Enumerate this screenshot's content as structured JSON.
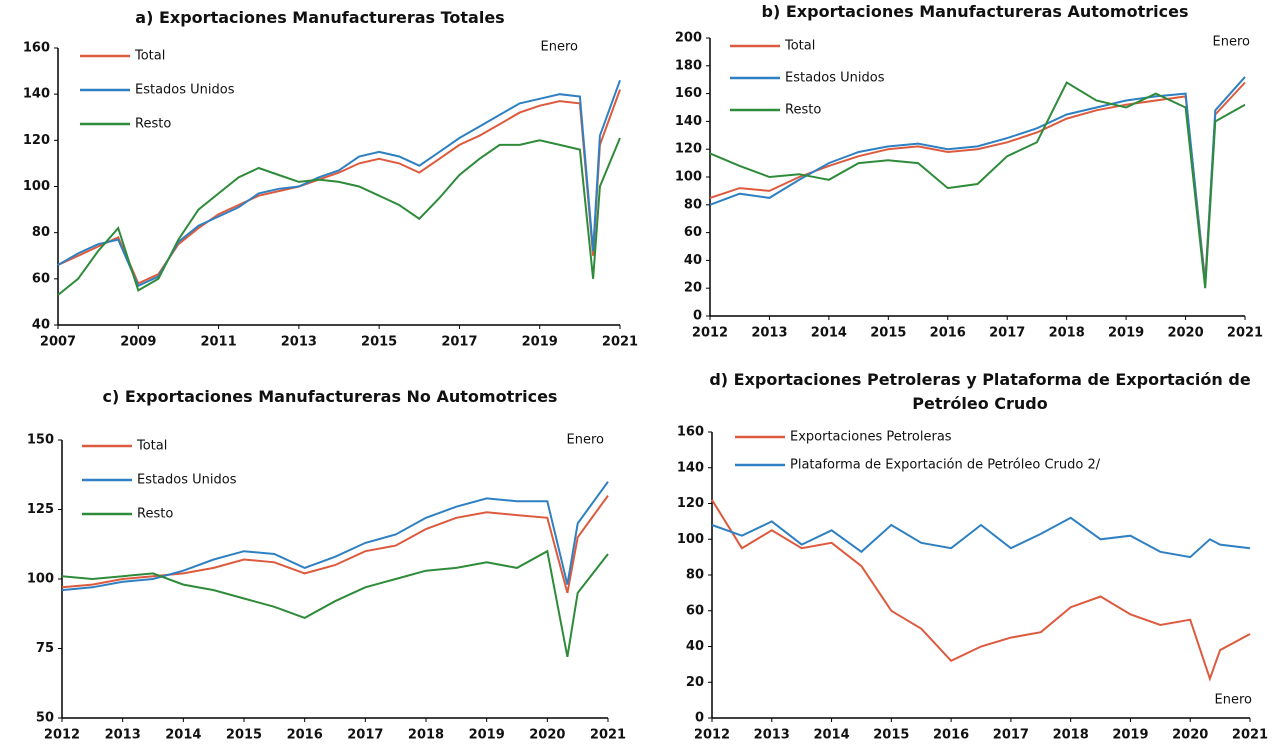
{
  "chart_data": [
    {
      "type": "line",
      "title": "a) Exportaciones Manufactureras Totales",
      "annotation": "Enero",
      "x": [
        2007,
        2007.5,
        2008,
        2008.5,
        2009,
        2009.5,
        2010,
        2010.5,
        2011,
        2011.5,
        2012,
        2012.5,
        2013,
        2013.5,
        2014,
        2014.5,
        2015,
        2015.5,
        2016,
        2016.5,
        2017,
        2017.5,
        2018,
        2018.5,
        2019,
        2019.5,
        2020,
        2020.33,
        2020.5,
        2021
      ],
      "xlim": [
        2007,
        2021
      ],
      "xticks": [
        2007,
        2009,
        2011,
        2013,
        2015,
        2017,
        2019,
        2021
      ],
      "ylim": [
        40,
        160
      ],
      "yticks": [
        40,
        60,
        80,
        100,
        120,
        140,
        160
      ],
      "series": [
        {
          "name": "Total",
          "color": "#dd5a3e",
          "values": [
            66,
            70,
            74,
            78,
            58,
            62,
            75,
            82,
            88,
            92,
            96,
            98,
            100,
            103,
            106,
            110,
            112,
            110,
            106,
            112,
            118,
            122,
            127,
            132,
            135,
            137,
            136,
            70,
            118,
            142
          ]
        },
        {
          "name": "Estados Unidos",
          "color": "#2f80c2",
          "values": [
            66,
            71,
            75,
            77,
            57,
            61,
            76,
            83,
            87,
            91,
            97,
            99,
            100,
            104,
            107,
            113,
            115,
            113,
            109,
            115,
            121,
            126,
            131,
            136,
            138,
            140,
            139,
            72,
            122,
            146
          ]
        },
        {
          "name": "Resto",
          "color": "#2e8b3a",
          "values": [
            53,
            60,
            72,
            82,
            55,
            60,
            77,
            90,
            97,
            104,
            108,
            105,
            102,
            103,
            102,
            100,
            96,
            92,
            86,
            95,
            105,
            112,
            118,
            118,
            120,
            118,
            116,
            60,
            100,
            121
          ]
        }
      ]
    },
    {
      "type": "line",
      "title": "b) Exportaciones Manufactureras Automotrices",
      "annotation": "Enero",
      "x": [
        2012,
        2012.5,
        2013,
        2013.5,
        2014,
        2014.5,
        2015,
        2015.5,
        2016,
        2016.5,
        2017,
        2017.5,
        2018,
        2018.5,
        2019,
        2019.5,
        2020,
        2020.33,
        2020.5,
        2021
      ],
      "xlim": [
        2012,
        2021
      ],
      "xticks": [
        2012,
        2013,
        2014,
        2015,
        2016,
        2017,
        2018,
        2019,
        2020,
        2021
      ],
      "ylim": [
        0,
        200
      ],
      "yticks": [
        0,
        20,
        40,
        60,
        80,
        100,
        120,
        140,
        160,
        180,
        200
      ],
      "series": [
        {
          "name": "Total",
          "color": "#dd5a3e",
          "values": [
            85,
            92,
            90,
            100,
            108,
            115,
            120,
            122,
            118,
            120,
            125,
            132,
            142,
            148,
            152,
            155,
            158,
            25,
            145,
            168
          ]
        },
        {
          "name": "Estados Unidos",
          "color": "#2f80c2",
          "values": [
            80,
            88,
            85,
            98,
            110,
            118,
            122,
            124,
            120,
            122,
            128,
            135,
            145,
            150,
            155,
            158,
            160,
            22,
            148,
            172
          ]
        },
        {
          "name": "Resto",
          "color": "#2e8b3a",
          "values": [
            117,
            108,
            100,
            102,
            98,
            110,
            112,
            110,
            92,
            95,
            115,
            125,
            168,
            155,
            150,
            160,
            150,
            20,
            140,
            152
          ]
        }
      ]
    },
    {
      "type": "line",
      "title": "c) Exportaciones Manufactureras No Automotrices",
      "annotation": "Enero",
      "x": [
        2012,
        2012.5,
        2013,
        2013.5,
        2014,
        2014.5,
        2015,
        2015.5,
        2016,
        2016.5,
        2017,
        2017.5,
        2018,
        2018.5,
        2019,
        2019.5,
        2020,
        2020.33,
        2020.5,
        2021
      ],
      "xlim": [
        2012,
        2021
      ],
      "xticks": [
        2012,
        2013,
        2014,
        2015,
        2016,
        2017,
        2018,
        2019,
        2020,
        2021
      ],
      "ylim": [
        50,
        150
      ],
      "yticks": [
        50,
        75,
        100,
        125,
        150
      ],
      "series": [
        {
          "name": "Total",
          "color": "#dd5a3e",
          "values": [
            97,
            98,
            100,
            101,
            102,
            104,
            107,
            106,
            102,
            105,
            110,
            112,
            118,
            122,
            124,
            123,
            122,
            95,
            115,
            130
          ]
        },
        {
          "name": "Estados Unidos",
          "color": "#2f80c2",
          "values": [
            96,
            97,
            99,
            100,
            103,
            107,
            110,
            109,
            104,
            108,
            113,
            116,
            122,
            126,
            129,
            128,
            128,
            98,
            120,
            135
          ]
        },
        {
          "name": "Resto",
          "color": "#2e8b3a",
          "values": [
            101,
            100,
            101,
            102,
            98,
            96,
            93,
            90,
            86,
            92,
            97,
            100,
            103,
            104,
            106,
            104,
            110,
            72,
            95,
            109
          ]
        }
      ]
    },
    {
      "type": "line",
      "title": "d) Exportaciones Petroleras y Plataforma de Exportación de Petróleo Crudo",
      "annotation": "Enero",
      "x": [
        2012,
        2012.5,
        2013,
        2013.5,
        2014,
        2014.5,
        2015,
        2015.5,
        2016,
        2016.5,
        2017,
        2017.5,
        2018,
        2018.5,
        2019,
        2019.5,
        2020,
        2020.33,
        2020.5,
        2021
      ],
      "xlim": [
        2012,
        2021
      ],
      "xticks": [
        2012,
        2013,
        2014,
        2015,
        2016,
        2017,
        2018,
        2019,
        2020,
        2021
      ],
      "ylim": [
        0,
        160
      ],
      "yticks": [
        0,
        20,
        40,
        60,
        80,
        100,
        120,
        140,
        160
      ],
      "series": [
        {
          "name": "Exportaciones Petroleras",
          "color": "#dd5a3e",
          "values": [
            122,
            95,
            105,
            95,
            98,
            85,
            60,
            50,
            32,
            40,
            45,
            48,
            62,
            68,
            58,
            52,
            55,
            22,
            38,
            47
          ]
        },
        {
          "name": "Plataforma de Exportación de Petróleo Crudo 2/",
          "color": "#2f80c2",
          "values": [
            108,
            102,
            110,
            97,
            105,
            93,
            108,
            98,
            95,
            108,
            95,
            103,
            112,
            100,
            102,
            93,
            90,
            100,
            97,
            95
          ]
        }
      ]
    }
  ]
}
